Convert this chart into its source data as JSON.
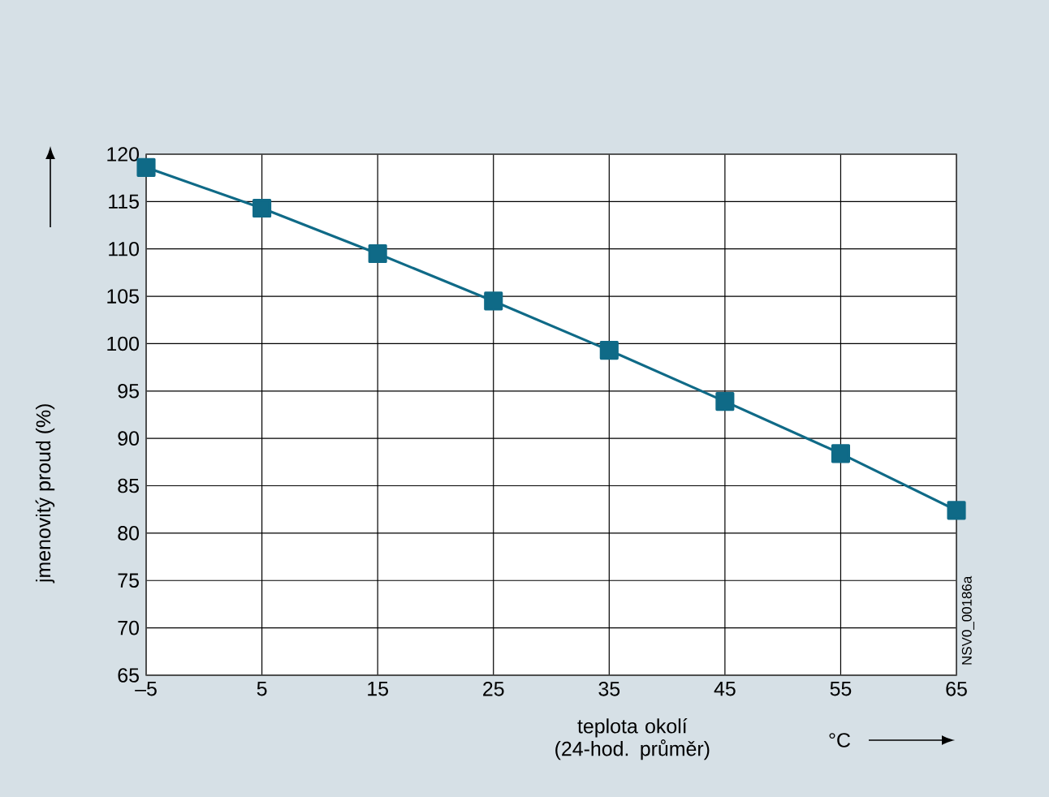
{
  "chart_data": {
    "type": "line",
    "xlabel": "teplota okolí (24-hod. průměr)",
    "ylabel": "jmenovitý proud (%)",
    "annotations": [
      "°C",
      "NSV0_00186a"
    ],
    "x": [
      -5,
      5,
      15,
      25,
      35,
      45,
      55,
      65
    ],
    "values": [
      118.6,
      114.3,
      109.5,
      104.5,
      99.3,
      93.9,
      88.4,
      82.4
    ],
    "color": "#0f6a87",
    "marker": "square",
    "line_style": "solid",
    "xlim": [
      -5,
      65
    ],
    "ylim": [
      65,
      120
    ],
    "xticks": [
      {
        "value": -5,
        "label": "–5"
      },
      5,
      15,
      25,
      35,
      45,
      55,
      65
    ],
    "yticks": [
      65,
      70,
      75,
      80,
      85,
      90,
      95,
      100,
      105,
      110,
      115,
      120
    ],
    "grid": true
  }
}
